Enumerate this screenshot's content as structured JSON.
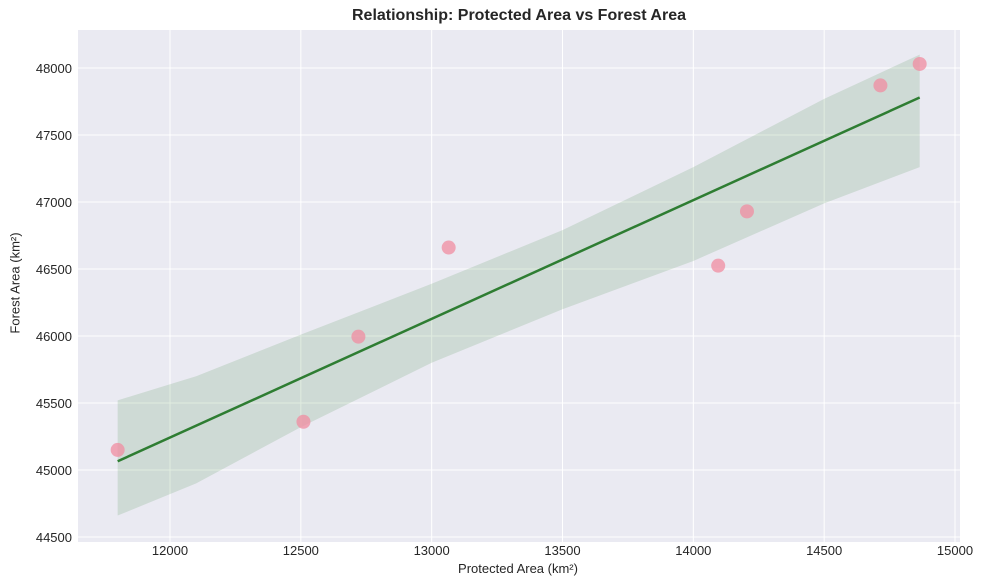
{
  "chart_data": {
    "type": "scatter",
    "title": "Relationship: Protected Area vs Forest Area",
    "xlabel": "Protected Area (km²)",
    "ylabel": "Forest Area (km²)",
    "xlim": [
      11660,
      15030
    ],
    "ylim": [
      44470,
      48280
    ],
    "xticks": [
      12000,
      12500,
      13000,
      13500,
      14000,
      14500,
      15000
    ],
    "yticks": [
      44500,
      45000,
      45500,
      46000,
      46500,
      47000,
      47500,
      48000
    ],
    "grid": true,
    "legend": null,
    "series": [
      {
        "name": "observations",
        "kind": "scatter",
        "color": "#f08ca0",
        "points": [
          {
            "x": 11800,
            "y": 45150
          },
          {
            "x": 12510,
            "y": 45360
          },
          {
            "x": 12720,
            "y": 45995
          },
          {
            "x": 13065,
            "y": 46660
          },
          {
            "x": 14095,
            "y": 46525
          },
          {
            "x": 14205,
            "y": 46930
          },
          {
            "x": 14715,
            "y": 47870
          },
          {
            "x": 14865,
            "y": 48030
          }
        ]
      },
      {
        "name": "regression fit",
        "kind": "line",
        "color": "#2e7d32",
        "points": [
          {
            "x": 11800,
            "y": 45065
          },
          {
            "x": 14865,
            "y": 47780
          }
        ]
      },
      {
        "name": "95% confidence band",
        "kind": "area",
        "color": "#2e7d32",
        "upper": [
          {
            "x": 11800,
            "y": 45520
          },
          {
            "x": 12100,
            "y": 45700
          },
          {
            "x": 12500,
            "y": 46010
          },
          {
            "x": 13000,
            "y": 46390
          },
          {
            "x": 13500,
            "y": 46790
          },
          {
            "x": 14000,
            "y": 47260
          },
          {
            "x": 14500,
            "y": 47770
          },
          {
            "x": 14865,
            "y": 48100
          }
        ],
        "lower": [
          {
            "x": 11800,
            "y": 44660
          },
          {
            "x": 12100,
            "y": 44900
          },
          {
            "x": 12500,
            "y": 45320
          },
          {
            "x": 13000,
            "y": 45800
          },
          {
            "x": 13500,
            "y": 46200
          },
          {
            "x": 14000,
            "y": 46560
          },
          {
            "x": 14500,
            "y": 46990
          },
          {
            "x": 14865,
            "y": 47260
          }
        ]
      }
    ]
  },
  "style": {
    "background": "#ffffff",
    "plot_background": "#eaeaf2",
    "grid_color": "#ffffff",
    "tick_color": "#262626"
  }
}
